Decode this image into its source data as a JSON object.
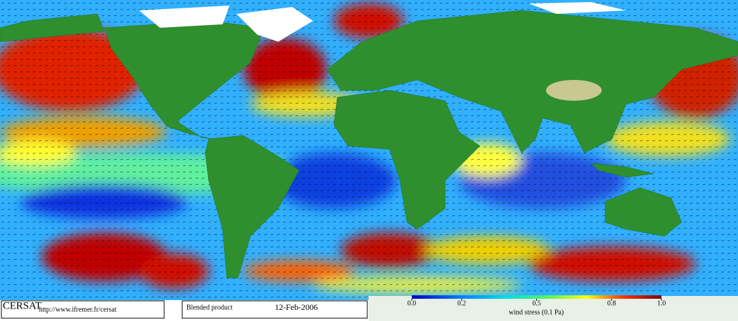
{
  "footer": {
    "logo": "CERSAT",
    "url": "http://www.ifremer.fr/cersat",
    "product": "Blended product",
    "date": "12-Feb-2006"
  },
  "legend": {
    "title": "wind stress (0.1 Pa)",
    "range": [
      0,
      1
    ],
    "ticks": [
      {
        "value": 0,
        "label": "0.0"
      },
      0.2,
      0.5,
      0.8,
      {
        "value": 1,
        "label": "1.0"
      }
    ]
  }
}
